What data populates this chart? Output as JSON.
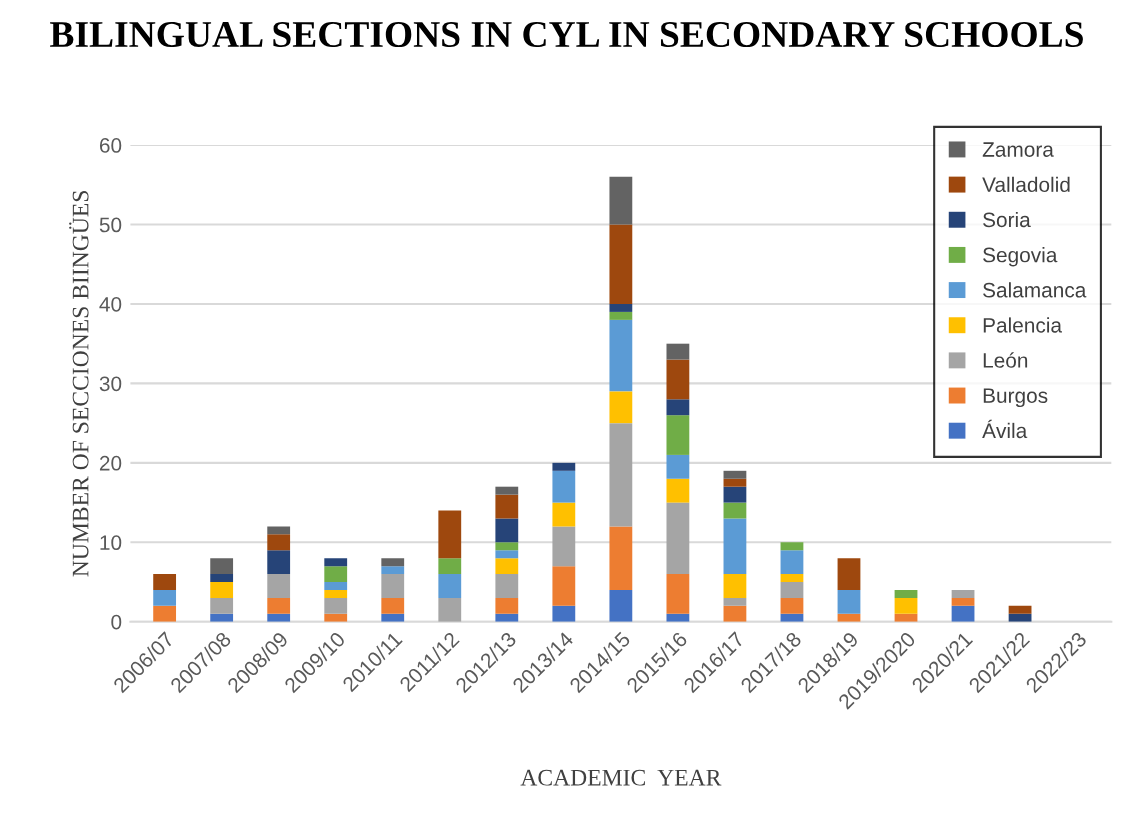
{
  "chart_data": {
    "type": "bar",
    "stacked": true,
    "title": "BILINGUAL SECTIONS IN CYL IN SECONDARY SCHOOLS",
    "xlabel": "ACADEMIC  YEAR",
    "ylabel": "NUMBER OF SECCIONES BIINGÜES",
    "categories": [
      "2006/07",
      "2007/08",
      "2008/09",
      "2009/10",
      "2010/11",
      "2011/12",
      "2012/13",
      "2013/14",
      "2014/15",
      "2015/16",
      "2016/17",
      "2017/18",
      "2018/19",
      "2019/2020",
      "2020/21",
      "2021/22",
      "2022/23"
    ],
    "series": [
      {
        "name": "Ávila",
        "color": "#4472c4",
        "values": [
          0,
          1,
          1,
          0,
          1,
          0,
          1,
          2,
          4,
          1,
          0,
          1,
          0,
          0,
          2,
          0,
          0
        ]
      },
      {
        "name": "Burgos",
        "color": "#ed7d31",
        "values": [
          2,
          0,
          2,
          1,
          2,
          0,
          2,
          5,
          8,
          5,
          2,
          2,
          1,
          1,
          1,
          0,
          0
        ]
      },
      {
        "name": "León",
        "color": "#a5a5a5",
        "values": [
          0,
          2,
          3,
          2,
          3,
          3,
          3,
          5,
          13,
          9,
          1,
          2,
          0,
          0,
          1,
          0,
          0
        ]
      },
      {
        "name": "Palencia",
        "color": "#ffc000",
        "values": [
          0,
          2,
          0,
          1,
          0,
          0,
          2,
          3,
          4,
          3,
          3,
          1,
          0,
          2,
          0,
          0,
          0
        ]
      },
      {
        "name": "Salamanca",
        "color": "#5b9bd5",
        "values": [
          2,
          0,
          0,
          1,
          1,
          3,
          1,
          4,
          9,
          3,
          7,
          3,
          3,
          0,
          0,
          0,
          0
        ]
      },
      {
        "name": "Segovia",
        "color": "#70ad47",
        "values": [
          0,
          0,
          0,
          2,
          0,
          2,
          1,
          0,
          1,
          5,
          2,
          1,
          0,
          1,
          0,
          0,
          0
        ]
      },
      {
        "name": "Soria",
        "color": "#264478",
        "values": [
          0,
          1,
          3,
          1,
          0,
          0,
          3,
          1,
          1,
          2,
          2,
          0,
          0,
          0,
          0,
          1,
          0
        ]
      },
      {
        "name": "Valladolid",
        "color": "#9e480e",
        "values": [
          2,
          0,
          2,
          0,
          0,
          6,
          3,
          0,
          10,
          5,
          1,
          0,
          4,
          0,
          0,
          1,
          0
        ]
      },
      {
        "name": "Zamora",
        "color": "#636363",
        "values": [
          0,
          2,
          1,
          0,
          1,
          0,
          1,
          0,
          6,
          2,
          1,
          0,
          0,
          0,
          0,
          0,
          0
        ]
      }
    ],
    "ylim": [
      0,
      60
    ],
    "yticks": [
      0,
      10,
      20,
      30,
      40,
      50,
      60
    ],
    "grid": "y",
    "legend": "top right"
  }
}
